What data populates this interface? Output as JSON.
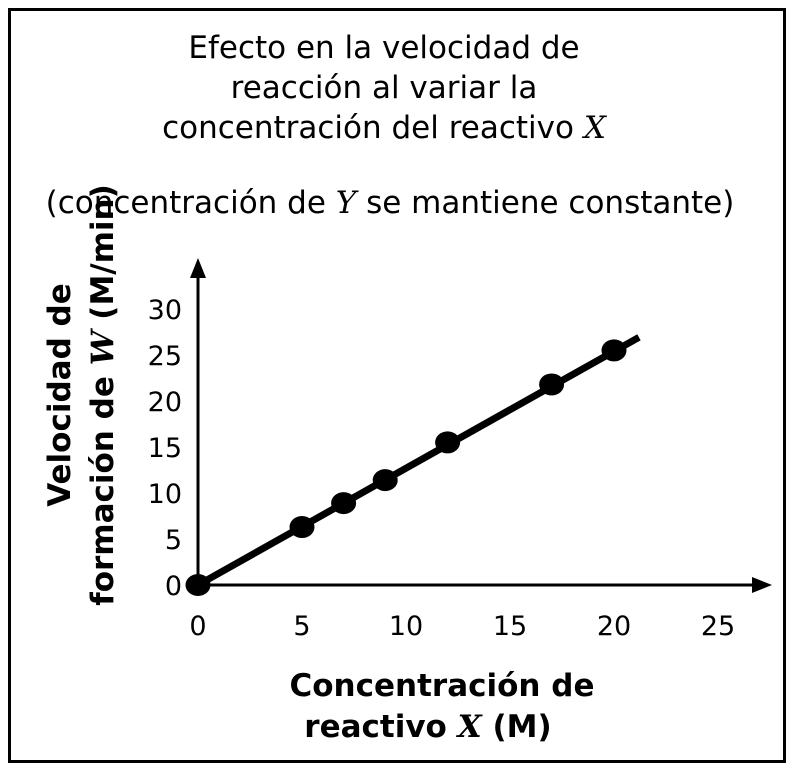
{
  "chart_data": {
    "type": "scatter",
    "title": {
      "line1": "Efecto en la velocidad de",
      "line2": "reacción al variar la",
      "line3_prefix": "concentración del reactivo ",
      "line3_var": "X"
    },
    "subtitle": {
      "prefix": "(concentración de ",
      "var": "Y",
      "suffix": " se mantiene constante)"
    },
    "xlabel": {
      "line1": "Concentración de",
      "line2_prefix": "reactivo ",
      "line2_var": "X",
      "line2_suffix": " (M)"
    },
    "ylabel": {
      "line1": "Velocidad de",
      "line2_prefix": "formación de ",
      "line2_var": "W",
      "line2_suffix": " (M/min)"
    },
    "xlim": [
      0,
      25
    ],
    "ylim": [
      0,
      30
    ],
    "xticks": [
      0,
      5,
      10,
      15,
      20,
      25
    ],
    "yticks": [
      0,
      5,
      10,
      15,
      20,
      25,
      30
    ],
    "points": [
      {
        "x": 0,
        "y": 0
      },
      {
        "x": 5,
        "y": 6.3
      },
      {
        "x": 7,
        "y": 8.9
      },
      {
        "x": 9,
        "y": 11.4
      },
      {
        "x": 12,
        "y": 15.5
      },
      {
        "x": 17,
        "y": 21.8
      },
      {
        "x": 20,
        "y": 25.5
      }
    ],
    "fit_line": {
      "x_start": 0,
      "x_end": 21.2,
      "slope": 1.27
    },
    "grid": false,
    "marker_color": "#000000",
    "line_color": "#000000"
  }
}
